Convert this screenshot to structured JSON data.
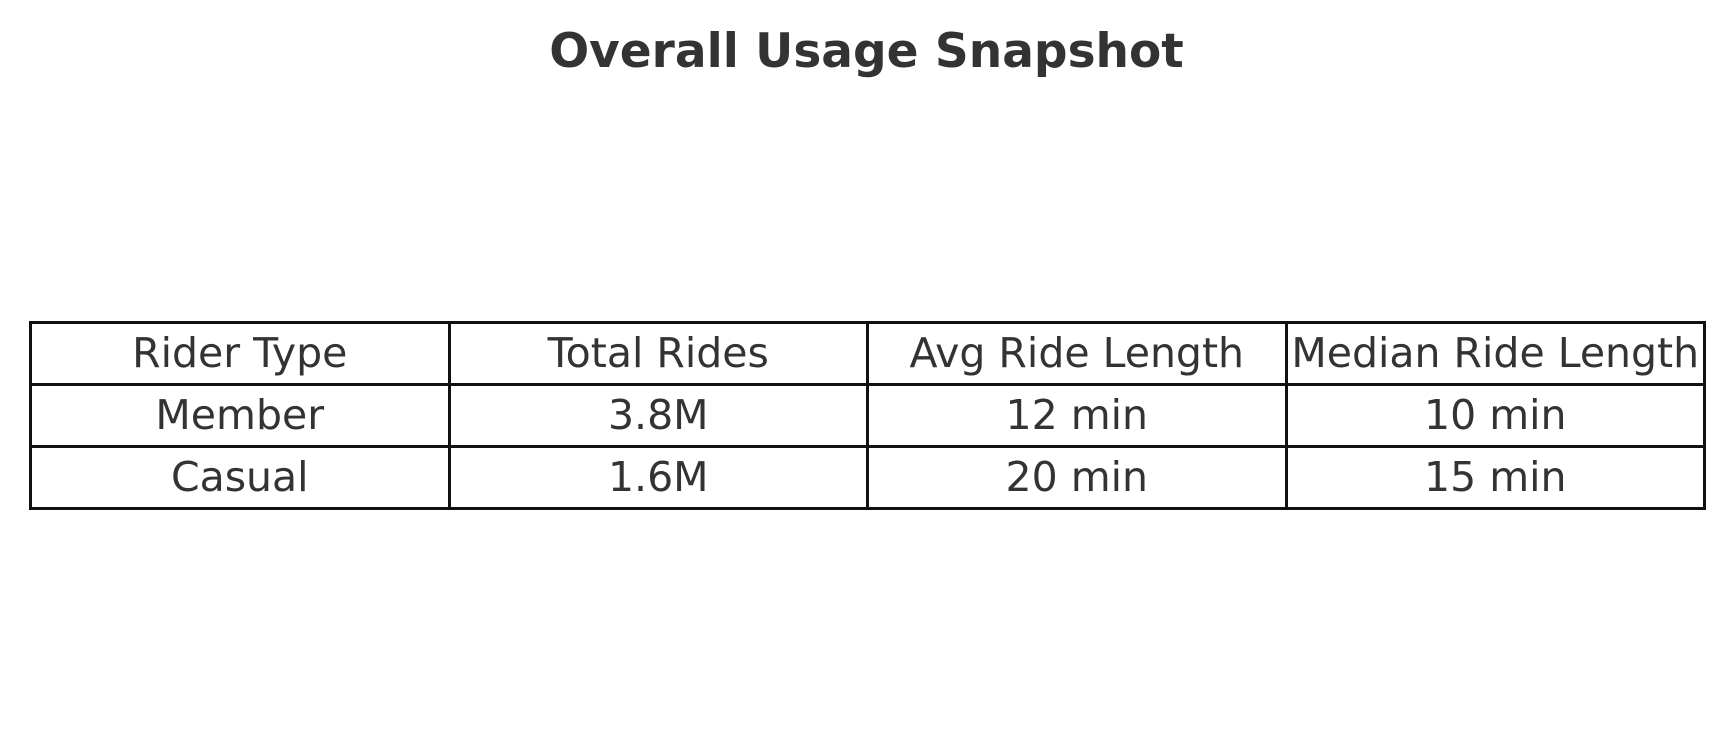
{
  "chart_data": {
    "type": "table",
    "title": "Overall Usage Snapshot",
    "columns": [
      "Rider Type",
      "Total Rides",
      "Avg Ride Length",
      "Median Ride Length"
    ],
    "rows": [
      [
        "Member",
        "3.8M",
        "12 min",
        "10 min"
      ],
      [
        "Casual",
        "1.6M",
        "20 min",
        "15 min"
      ]
    ]
  },
  "colors": {
    "text": "#333333",
    "border": "#111111",
    "background": "#ffffff"
  }
}
